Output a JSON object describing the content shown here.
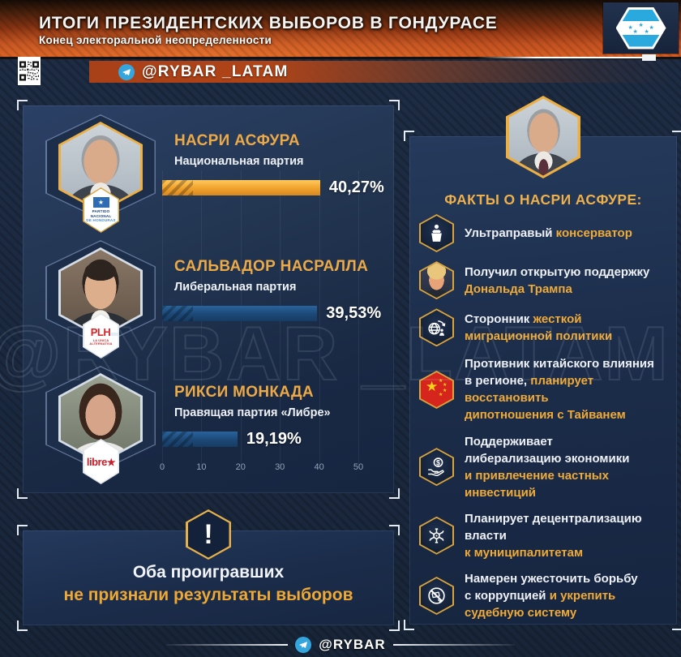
{
  "header": {
    "title": "ИТОГИ ПРЕЗИДЕНТСКИХ ВЫБОРОВ В ГОНДУРАСЕ",
    "subtitle": "Конец электоральной неопределенности"
  },
  "branding": {
    "channel_handle": "@RYBAR _LATAM",
    "footer_handle": "@RYBAR",
    "watermark": "@RYBAR _LATAM",
    "logo": "honduras-flag-hexagon",
    "qr": "qr-code"
  },
  "chart_data": {
    "type": "bar",
    "orientation": "horizontal",
    "categories": [
      "НАСРИ АСФУРА",
      "САЛЬВАДОР НАСРАЛЛА",
      "РИКСИ МОНКАДА"
    ],
    "values": [
      40.27,
      39.53,
      19.19
    ],
    "xlim": [
      0,
      50
    ],
    "ticks": [
      0,
      10,
      20,
      30,
      40,
      50
    ],
    "grid": "vertical",
    "bars": [
      {
        "name": "НАСРИ АСФУРА",
        "party": "Национальная партия",
        "value": 40.27,
        "label": "40,27%",
        "color": "#f2a63a",
        "badge": {
          "type": "pn",
          "star": "★",
          "lines": [
            "PARTIDO",
            "NACIONAL",
            "DE HONDURAS"
          ]
        }
      },
      {
        "name": "САЛЬВАДОР НАСРАЛЛА",
        "party": "Либеральная партия",
        "value": 39.53,
        "label": "39,53%",
        "color": "#1d4b7b",
        "badge": {
          "type": "plh",
          "title": "PLH",
          "subtitle": "LA ÚNICA ALTERNATIVA"
        }
      },
      {
        "name": "РИКСИ МОНКАДА",
        "party": "Правящая партия «Либре»",
        "value": 19.19,
        "label": "19,19%",
        "color": "#1d4b7b",
        "badge": {
          "type": "libre",
          "title": "libre",
          "star": "★"
        }
      }
    ]
  },
  "facts_panel": {
    "title": "ФАКТЫ О НАСРИ АСФУРЕ:",
    "facts": [
      {
        "icon": "podium-speaker-icon",
        "lines": [
          [
            {
              "t": "Ультраправый ",
              "c": "w"
            },
            {
              "t": "консерватор",
              "c": "g"
            }
          ]
        ]
      },
      {
        "icon": "trump-photo-icon",
        "lines": [
          [
            {
              "t": "Получил открытую поддержку",
              "c": "w"
            }
          ],
          [
            {
              "t": "Дональда Трампа",
              "c": "g"
            }
          ]
        ]
      },
      {
        "icon": "migration-globe-icon",
        "lines": [
          [
            {
              "t": "Сторонник ",
              "c": "w"
            },
            {
              "t": "жесткой",
              "c": "g"
            }
          ],
          [
            {
              "t": "миграционной политики",
              "c": "g"
            }
          ]
        ]
      },
      {
        "icon": "china-flag-icon",
        "lines": [
          [
            {
              "t": "Противник китайского влияния",
              "c": "w"
            }
          ],
          [
            {
              "t": "в регионе, ",
              "c": "w"
            },
            {
              "t": "планирует восстановить",
              "c": "g"
            }
          ],
          [
            {
              "t": "дипотношения с Тайванем",
              "c": "g"
            }
          ]
        ]
      },
      {
        "icon": "economy-hand-icon",
        "lines": [
          [
            {
              "t": "Поддерживает",
              "c": "w"
            }
          ],
          [
            {
              "t": "либерализацию экономики",
              "c": "w"
            }
          ],
          [
            {
              "t": "и привлечение частных инвестиций",
              "c": "g"
            }
          ]
        ]
      },
      {
        "icon": "decentralization-icon",
        "lines": [
          [
            {
              "t": "Планирует децентрализацию власти",
              "c": "w"
            }
          ],
          [
            {
              "t": "к муниципалитетам",
              "c": "g"
            }
          ]
        ]
      },
      {
        "icon": "anti-corruption-icon",
        "lines": [
          [
            {
              "t": "Намерен ужесточить борьбу",
              "c": "w"
            }
          ],
          [
            {
              "t": "с коррупцией ",
              "c": "w"
            },
            {
              "t": "и укрепить",
              "c": "g"
            }
          ],
          [
            {
              "t": "судебную систему",
              "c": "g"
            }
          ]
        ]
      }
    ]
  },
  "warning": {
    "line1": "Оба проигравших",
    "line2": "не признали результаты выборов"
  },
  "colors": {
    "accent_gold": "#eda93e",
    "header_orange": "#d45d22",
    "bar_yellow": "#f2a63a",
    "bar_blue": "#1d4b7b",
    "telegram_blue": "#35a5dd",
    "china_red": "#d6251d",
    "panel_navy": "#1d2f4d"
  }
}
